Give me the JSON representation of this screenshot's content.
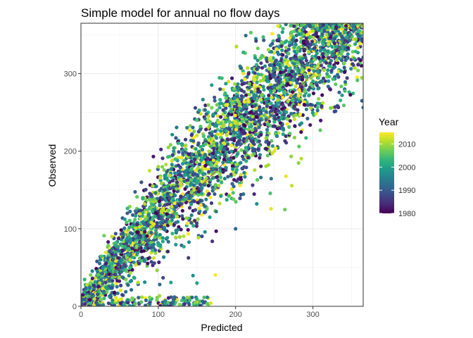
{
  "chart_data": {
    "type": "scatter",
    "title": "Simple model for annual no flow days",
    "xlabel": "Predicted",
    "ylabel": "Observed",
    "xlim": [
      0,
      365
    ],
    "ylim": [
      0,
      365
    ],
    "x_ticks": [
      0,
      100,
      200,
      300
    ],
    "y_ticks": [
      0,
      100,
      200,
      300
    ],
    "grid": true,
    "reference_line": {
      "type": "identity",
      "slope": 1,
      "intercept": 0,
      "color": "#8b2a5a"
    },
    "color_scale": {
      "name": "Year",
      "palette": "viridis",
      "range": [
        1980,
        2015
      ],
      "ticks": [
        1980,
        1990,
        2000,
        2010
      ],
      "colors": [
        "#440154",
        "#482878",
        "#3e4989",
        "#31688e",
        "#26828e",
        "#1f9e89",
        "#35b779",
        "#6ece58",
        "#b5de2b",
        "#fde725"
      ]
    },
    "legend": {
      "position": "right"
    },
    "point_color": "mapped to Year",
    "points_description": "Dense cloud of several thousand points scattered around the 1:1 line from (0,0) to (365,365); observed values tend to exceed predicted, spread widens mid-range.",
    "sample_points": [
      {
        "x": 5,
        "y": 3,
        "year": 1985
      },
      {
        "x": 12,
        "y": 30,
        "year": 2008
      },
      {
        "x": 25,
        "y": 60,
        "year": 1995
      },
      {
        "x": 40,
        "y": 90,
        "year": 2012
      },
      {
        "x": 60,
        "y": 120,
        "year": 1990
      },
      {
        "x": 80,
        "y": 140,
        "year": 2002
      },
      {
        "x": 100,
        "y": 180,
        "year": 2010
      },
      {
        "x": 120,
        "y": 200,
        "year": 1998
      },
      {
        "x": 150,
        "y": 240,
        "year": 2005
      },
      {
        "x": 180,
        "y": 280,
        "year": 1988
      },
      {
        "x": 210,
        "y": 300,
        "year": 2014
      },
      {
        "x": 240,
        "y": 320,
        "year": 1993
      },
      {
        "x": 270,
        "y": 340,
        "year": 2001
      },
      {
        "x": 300,
        "y": 355,
        "year": 2011
      },
      {
        "x": 330,
        "y": 360,
        "year": 1983
      },
      {
        "x": 150,
        "y": 30,
        "year": 2000
      },
      {
        "x": 200,
        "y": 100,
        "year": 1992
      },
      {
        "x": 250,
        "y": 200,
        "year": 2013
      }
    ]
  }
}
